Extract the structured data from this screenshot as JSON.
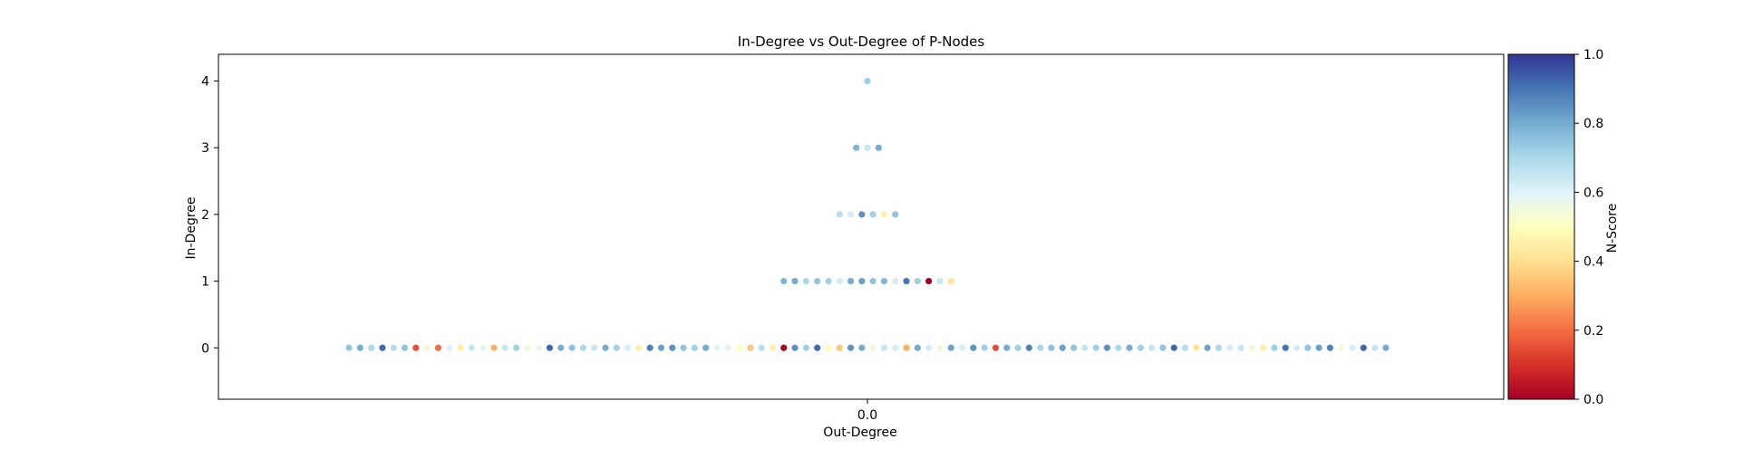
{
  "chart_data": {
    "type": "scatter",
    "title": "In-Degree vs Out-Degree of P-Nodes",
    "xlabel": "Out-Degree",
    "ylabel": "In-Degree",
    "x_tick_labels": [
      "0.0"
    ],
    "y_tick_labels": [
      "0",
      "1",
      "2",
      "3",
      "4"
    ],
    "ylim": [
      -0.77,
      4.4
    ],
    "colorbar": {
      "label": "N-Score",
      "range": [
        0,
        1
      ],
      "colormap": "RdYlBu",
      "tick_labels": [
        "0.0",
        "0.2",
        "0.4",
        "0.6",
        "0.8",
        "1.0"
      ]
    },
    "grid": false,
    "note_x_jitter": "All points have Out-Degree 0; points are spread horizontally (swarm) around x = 0.",
    "series": [
      {
        "y": 4,
        "n_scores": [
          0.72
        ]
      },
      {
        "y": 3,
        "n_scores": [
          0.78,
          0.65,
          0.8
        ]
      },
      {
        "y": 2,
        "n_scores": [
          0.68,
          0.62,
          0.85,
          0.72,
          0.45,
          0.75
        ]
      },
      {
        "y": 1,
        "n_scores": [
          0.78,
          0.8,
          0.7,
          0.75,
          0.72,
          0.62,
          0.8,
          0.82,
          0.75,
          0.78,
          0.62,
          0.9,
          0.72,
          0.0,
          0.65,
          0.42
        ]
      },
      {
        "y": 0,
        "n_scores": [
          0.75,
          0.8,
          0.7,
          0.92,
          0.68,
          0.75,
          0.15,
          0.55,
          0.2,
          0.6,
          0.45,
          0.65,
          0.58,
          0.3,
          0.65,
          0.72,
          0.55,
          0.58,
          0.92,
          0.8,
          0.75,
          0.7,
          0.65,
          0.8,
          0.72,
          0.62,
          0.45,
          0.88,
          0.82,
          0.85,
          0.75,
          0.72,
          0.8,
          0.6,
          0.58,
          0.5,
          0.35,
          0.68,
          0.45,
          0.0,
          0.85,
          0.72,
          0.92,
          0.5,
          0.35,
          0.85,
          0.8,
          0.55,
          0.65,
          0.62,
          0.3,
          0.8,
          0.62,
          0.55,
          0.82,
          0.62,
          0.85,
          0.72,
          0.15,
          0.8,
          0.72,
          0.88,
          0.7,
          0.75,
          0.82,
          0.75,
          0.65,
          0.72,
          0.85,
          0.7,
          0.8,
          0.72,
          0.65,
          0.75,
          0.92,
          0.68,
          0.42,
          0.82,
          0.7,
          0.62,
          0.65,
          0.55,
          0.45,
          0.72,
          0.9,
          0.62,
          0.75,
          0.82,
          0.88,
          0.55,
          0.62,
          0.92,
          0.65,
          0.8
        ]
      }
    ]
  }
}
